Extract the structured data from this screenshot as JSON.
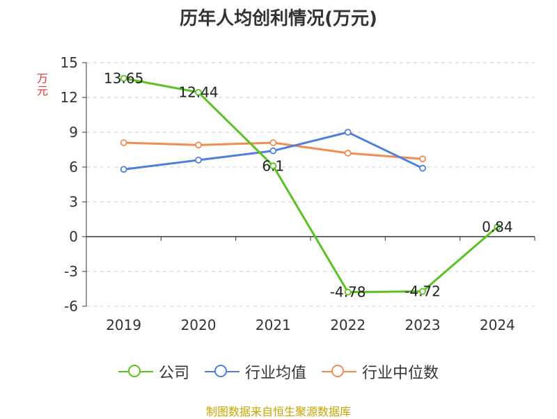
{
  "chart_data": {
    "type": "line",
    "title": "历年人均创利情况(万元)",
    "ylabel": "万元",
    "categories": [
      "2019",
      "2020",
      "2021",
      "2022",
      "2023",
      "2024"
    ],
    "ylim": [
      -6,
      15
    ],
    "yticks": [
      15,
      12,
      9,
      6,
      3,
      0,
      -3,
      -6
    ],
    "grid": true,
    "legend_position": "bottom",
    "series": [
      {
        "name": "公司",
        "color": "#5ac21f",
        "values": [
          13.65,
          12.44,
          6.1,
          -4.78,
          -4.72,
          0.84
        ],
        "labels": [
          "13.65",
          "12.44",
          "6.1",
          "-4.78",
          "-4.72",
          "0.84"
        ]
      },
      {
        "name": "行业均值",
        "color": "#4f7fd9",
        "values": [
          5.8,
          6.6,
          7.4,
          9.0,
          5.9,
          null
        ]
      },
      {
        "name": "行业中位数",
        "color": "#f28c52",
        "values": [
          8.1,
          7.9,
          8.1,
          7.2,
          6.7,
          null
        ]
      }
    ]
  },
  "source": "制图数据来自恒生聚源数据库",
  "unit_label_color": "#e0363a"
}
